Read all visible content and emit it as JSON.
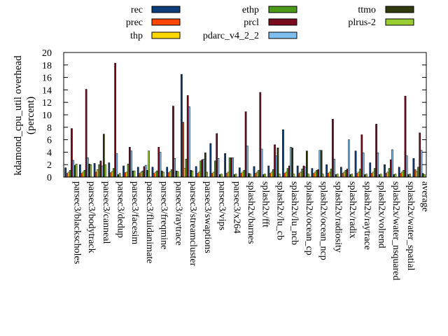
{
  "chart_data": {
    "type": "bar",
    "ylabel_line1": "kdamond_cpu_util overhead",
    "ylabel_line2": "(percent)",
    "ylim": [
      0,
      20
    ],
    "yticks": [
      "0",
      "2",
      "4",
      "6",
      "8",
      "10",
      "12",
      "14",
      "16",
      "18",
      "20"
    ],
    "grid": false,
    "legend_position": "top",
    "categories": [
      "parsec3/blackscholes",
      "parsec3/bodytrack",
      "parsec3/canneal",
      "parsec3/dedup",
      "parsec3/facesim",
      "parsec3/fluidanimate",
      "parsec3/freqmine",
      "parsec3/raytrace",
      "parsec3/streamcluster",
      "parsec3/swaptions",
      "parsec3/vips",
      "parsec3/x264",
      "splash2x/barnes",
      "splash2x/fft",
      "splash2x/lu_cb",
      "splash2x/lu_ncb",
      "splash2x/ocean_cp",
      "splash2x/ocean_ncp",
      "splash2x/radiosity",
      "splash2x/radix",
      "splash2x/raytrace",
      "splash2x/volrend",
      "splash2x/water_nsquared",
      "splash2x/water_spatial",
      "average"
    ],
    "series": [
      {
        "name": "rec",
        "color": "#0b3d7a",
        "values": [
          1.5,
          2.0,
          2.2,
          2.3,
          1.8,
          1.6,
          1.6,
          1.6,
          16.5,
          1.7,
          5.4,
          3.8,
          1.5,
          1.7,
          1.8,
          7.6,
          1.8,
          1.4,
          2.0,
          1.6,
          4.2,
          2.3,
          2.0,
          1.6,
          3.0
        ]
      },
      {
        "name": "prec",
        "color": "#ff4500",
        "values": [
          0.6,
          0.6,
          0.8,
          0.7,
          0.7,
          0.6,
          0.6,
          0.7,
          8.8,
          0.6,
          0.6,
          0.6,
          0.6,
          0.6,
          0.6,
          0.6,
          0.6,
          0.6,
          0.6,
          0.6,
          0.6,
          0.6,
          0.6,
          0.6,
          1.2
        ]
      },
      {
        "name": "thp",
        "color": "#ffd700",
        "values": [
          0.8,
          0.8,
          1.2,
          0.9,
          0.8,
          0.8,
          0.8,
          0.9,
          1.4,
          0.8,
          0.8,
          0.8,
          0.8,
          0.8,
          0.8,
          0.8,
          0.8,
          0.8,
          0.8,
          0.8,
          0.8,
          0.8,
          0.8,
          0.8,
          0.9
        ]
      },
      {
        "name": "ethp",
        "color": "#4b9a1a",
        "values": [
          1.1,
          1.1,
          2.0,
          1.4,
          2.1,
          1.0,
          1.0,
          1.2,
          2.9,
          2.6,
          2.6,
          3.1,
          1.1,
          1.1,
          1.2,
          1.4,
          1.3,
          1.1,
          1.3,
          1.1,
          1.3,
          1.4,
          1.4,
          1.1,
          1.6
        ]
      },
      {
        "name": "prcl",
        "color": "#7a0a1e",
        "values": [
          7.8,
          14.1,
          2.6,
          18.3,
          4.8,
          1.7,
          4.8,
          11.4,
          13.1,
          2.8,
          7.0,
          3.1,
          10.5,
          13.6,
          5.2,
          1.8,
          1.8,
          1.2,
          9.3,
          1.3,
          6.8,
          8.5,
          2.8,
          13.0,
          7.1
        ]
      },
      {
        "name": "pdarc_v4_2_2",
        "color": "#7fbff0",
        "values": [
          2.7,
          3.1,
          1.8,
          3.8,
          4.2,
          1.9,
          4.0,
          3.0,
          11.3,
          2.9,
          3.0,
          3.1,
          5.0,
          4.5,
          3.4,
          4.8,
          1.6,
          4.3,
          2.9,
          6.0,
          3.9,
          3.9,
          4.4,
          3.4,
          4.3
        ]
      },
      {
        "name": "ttmo",
        "color": "#2f3b0d",
        "values": [
          1.9,
          2.1,
          6.9,
          0.4,
          1.0,
          1.1,
          1.0,
          1.0,
          1.1,
          3.9,
          0.4,
          0.4,
          0.6,
          0.4,
          4.7,
          4.7,
          4.2,
          4.3,
          0.4,
          0.4,
          0.4,
          0.4,
          0.4,
          0.4,
          0.6
        ]
      },
      {
        "name": "plrus-2",
        "color": "#9acd32",
        "values": [
          2.1,
          2.0,
          2.0,
          0.6,
          1.0,
          4.2,
          0.8,
          0.9,
          1.0,
          0.8,
          0.5,
          0.5,
          0.5,
          0.5,
          0.5,
          0.5,
          0.5,
          0.5,
          0.5,
          0.5,
          0.5,
          0.5,
          0.5,
          0.5,
          0.4
        ]
      }
    ]
  }
}
